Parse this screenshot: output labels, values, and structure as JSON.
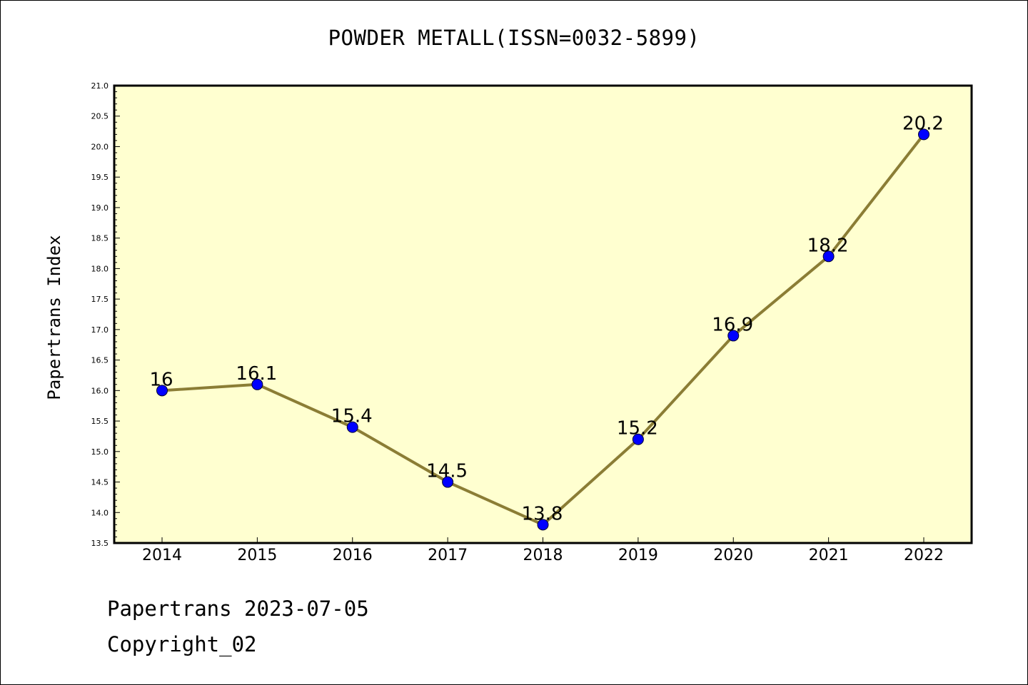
{
  "title": "POWDER METALL(ISSN=0032-5899)",
  "footer": {
    "line1": "Papertrans 2023-07-05",
    "line2": "Copyright_02"
  },
  "colors": {
    "plot_bg": "#ffffd0",
    "line": "#8b7d35",
    "marker": "#0000ff"
  },
  "chart_data": {
    "type": "line",
    "title": "POWDER METALL(ISSN=0032-5899)",
    "xlabel": "",
    "ylabel": "Papertrans Index",
    "x": [
      "2014",
      "2015",
      "2016",
      "2017",
      "2018",
      "2019",
      "2020",
      "2021",
      "2022"
    ],
    "series": [
      {
        "values": [
          16.0,
          16.1,
          15.4,
          14.5,
          13.8,
          15.2,
          16.9,
          18.2,
          20.2
        ],
        "labels": [
          "16",
          "16.1",
          "15.4",
          "14.5",
          "13.8",
          "15.2",
          "16.9",
          "18.2",
          "20.2"
        ]
      }
    ],
    "ylim": [
      13.5,
      21.0
    ],
    "yticks": [
      "13.5",
      "14.0",
      "14.5",
      "15.0",
      "15.5",
      "16.0",
      "16.5",
      "17.0",
      "17.5",
      "18.0",
      "18.5",
      "19.0",
      "19.5",
      "20.0",
      "20.5",
      "21.0"
    ],
    "grid": false,
    "legend": "none"
  }
}
